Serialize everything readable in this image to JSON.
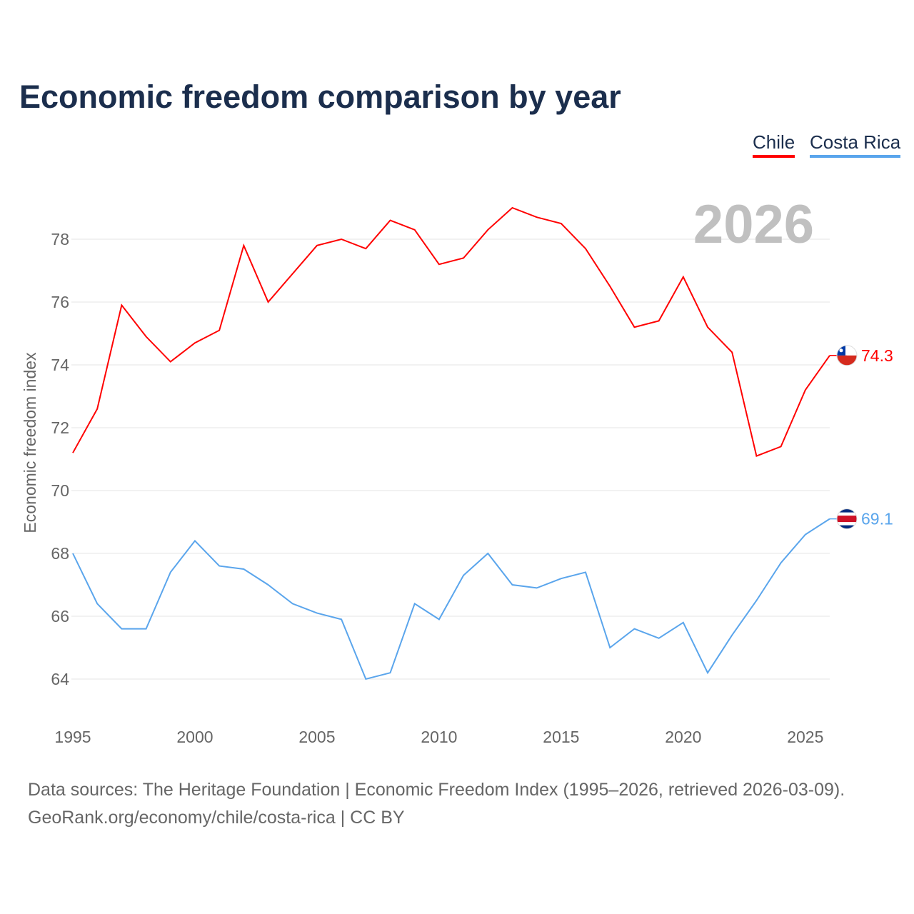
{
  "title": "Economic freedom comparison by year",
  "footer": {
    "line1": "Data sources: The Heritage Foundation | Economic Freedom Index (1995–2026, retrieved 2026-03-09).",
    "line2": "GeoRank.org/economy/chile/costa-rica | CC BY"
  },
  "chart_data": {
    "type": "line",
    "title": "Economic freedom comparison by year",
    "xlabel": "",
    "ylabel": "Economic freedom index",
    "year_watermark": "2026",
    "x": [
      1995,
      1996,
      1997,
      1998,
      1999,
      2000,
      2001,
      2002,
      2003,
      2004,
      2005,
      2006,
      2007,
      2008,
      2009,
      2010,
      2011,
      2012,
      2013,
      2014,
      2015,
      2016,
      2017,
      2018,
      2019,
      2020,
      2021,
      2022,
      2023,
      2024,
      2025,
      2026
    ],
    "xticks": [
      "1995",
      "2000",
      "2005",
      "2010",
      "2015",
      "2020",
      "2025"
    ],
    "yticks": [
      "64",
      "66",
      "68",
      "70",
      "72",
      "74",
      "76",
      "78"
    ],
    "xlim": [
      1995,
      2026
    ],
    "ylim": [
      62.9,
      80.3
    ],
    "grid": true,
    "legend": "top-right",
    "series": [
      {
        "name": "Chile",
        "color": "#ff0000",
        "end_label": "74.3",
        "values": [
          71.2,
          72.6,
          75.9,
          74.9,
          74.1,
          74.7,
          75.1,
          77.8,
          76.0,
          76.9,
          77.8,
          78.0,
          77.7,
          78.6,
          78.3,
          77.2,
          77.4,
          78.3,
          79.0,
          78.7,
          78.5,
          77.7,
          76.5,
          75.2,
          75.4,
          76.8,
          75.2,
          74.4,
          71.1,
          71.4,
          73.2,
          74.3
        ]
      },
      {
        "name": "Costa Rica",
        "color": "#5aa5ec",
        "end_label": "69.1",
        "values": [
          68.0,
          66.4,
          65.6,
          65.6,
          67.4,
          68.4,
          67.6,
          67.5,
          67.0,
          66.4,
          66.1,
          65.9,
          64.0,
          64.2,
          66.4,
          65.9,
          67.3,
          68.0,
          67.0,
          66.9,
          67.2,
          67.4,
          65.0,
          65.6,
          65.3,
          65.8,
          64.2,
          65.4,
          66.5,
          67.7,
          68.6,
          69.1
        ]
      }
    ]
  }
}
